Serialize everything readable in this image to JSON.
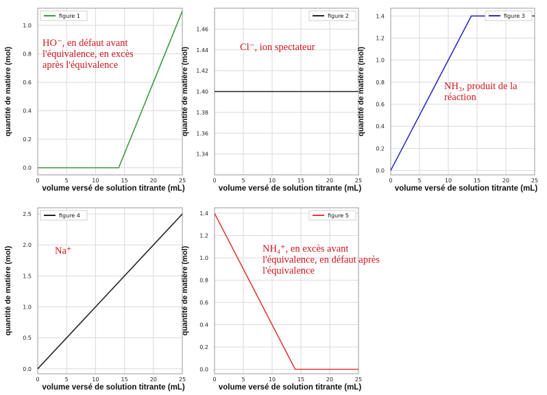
{
  "chart_data": [
    {
      "type": "line",
      "id": "figure-1",
      "legend": "figure 1",
      "color": "#3a9a3a",
      "xlabel": "volume versé de solution titrante (mL)",
      "ylabel": "quantité de matière (mol)",
      "xlim": [
        0,
        25
      ],
      "ylim": [
        -0.05,
        1.12
      ],
      "xticks": [
        0,
        5,
        10,
        15,
        20,
        25
      ],
      "yticks": [
        0.0,
        0.2,
        0.4,
        0.6,
        0.8,
        1.0
      ],
      "ytick_labels": [
        "0.0",
        "0.2",
        "0.4",
        "0.6",
        "0.8",
        "1.0"
      ],
      "x": [
        0,
        14,
        25
      ],
      "y": [
        0.0,
        0.0,
        1.1
      ],
      "annotation": [
        "HO⁻, en défaut avant",
        "l'équivalence, en excès",
        "après l'équivalence"
      ]
    },
    {
      "type": "line",
      "id": "figure-2",
      "legend": "figure 2",
      "color": "#222222",
      "xlabel": "volume versé de solution titrante (mL)",
      "ylabel": "quantité de matière (mol)",
      "xlim": [
        0,
        25
      ],
      "ylim": [
        1.32,
        1.48
      ],
      "xticks": [
        0,
        5,
        10,
        15,
        20,
        25
      ],
      "yticks": [
        1.34,
        1.36,
        1.38,
        1.4,
        1.42,
        1.44,
        1.46
      ],
      "ytick_labels": [
        "1.34",
        "1.36",
        "1.38",
        "1.40",
        "1.42",
        "1.44",
        "1.46"
      ],
      "x": [
        0,
        25
      ],
      "y": [
        1.4,
        1.4
      ],
      "annotation": [
        "Cl⁻, ion spectateur"
      ]
    },
    {
      "type": "line",
      "id": "figure-3",
      "legend": "figure 3",
      "color": "#2b2bbf",
      "xlabel": "volume versé de solution titrante (mL)",
      "ylabel": "quantité de matière (mol)",
      "xlim": [
        0,
        25
      ],
      "ylim": [
        -0.04,
        1.47
      ],
      "xticks": [
        0,
        5,
        10,
        15,
        20,
        25
      ],
      "yticks": [
        0.0,
        0.2,
        0.4,
        0.6,
        0.8,
        1.0,
        1.2,
        1.4
      ],
      "ytick_labels": [
        "0.0",
        "0.2",
        "0.4",
        "0.6",
        "0.8",
        "1.0",
        "1.2",
        "1.4"
      ],
      "x": [
        0,
        14,
        25
      ],
      "y": [
        0.0,
        1.4,
        1.4
      ],
      "annotation": [
        "NH₃, produit de la",
        "réaction"
      ]
    },
    {
      "type": "line",
      "id": "figure-4",
      "legend": "figure 4",
      "color": "#222222",
      "xlabel": "volume versé de solution titrante (mL)",
      "ylabel": "quantité de matière (mol)",
      "xlim": [
        0,
        25
      ],
      "ylim": [
        -0.08,
        2.6
      ],
      "xticks": [
        0,
        5,
        10,
        15,
        20,
        25
      ],
      "yticks": [
        0.0,
        0.5,
        1.0,
        1.5,
        2.0,
        2.5
      ],
      "ytick_labels": [
        "0.0",
        "0.5",
        "1.0",
        "1.5",
        "2.0",
        "2.5"
      ],
      "x": [
        0,
        25
      ],
      "y": [
        0.0,
        2.5
      ],
      "annotation": [
        "Na⁺"
      ]
    },
    {
      "type": "line",
      "id": "figure-5",
      "legend": "figure 5",
      "color": "#e03a3a",
      "xlabel": "volume versé de solution titrante (mL)",
      "ylabel": "quantité de matière (mol)",
      "xlim": [
        0,
        25
      ],
      "ylim": [
        -0.04,
        1.45
      ],
      "xticks": [
        0,
        5,
        10,
        15,
        20,
        25
      ],
      "yticks": [
        0.0,
        0.2,
        0.4,
        0.6,
        0.8,
        1.0,
        1.2,
        1.4
      ],
      "ytick_labels": [
        "0.0",
        "0.2",
        "0.4",
        "0.6",
        "0.8",
        "1.0",
        "1.2",
        "1.4"
      ],
      "x": [
        0,
        14,
        25
      ],
      "y": [
        1.4,
        0.0,
        0.0
      ],
      "annotation": [
        "NH₄⁺, en excès avant",
        "l'équivalence, en défaut après",
        "l'équivalence"
      ]
    }
  ]
}
